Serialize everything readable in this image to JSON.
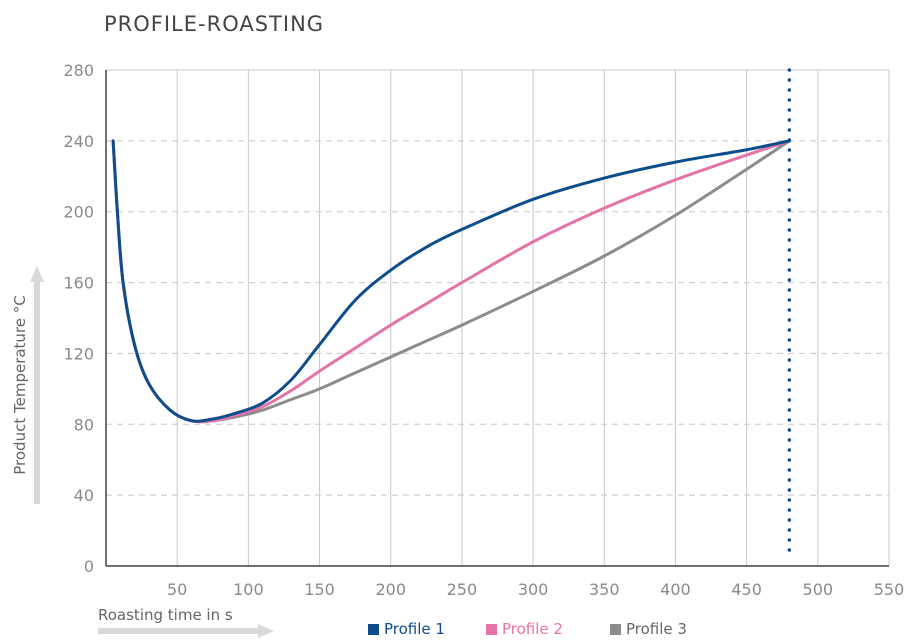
{
  "title": "PROFILE-ROASTING",
  "colors": {
    "profile1": "#0d4d8c",
    "profile2": "#e573a8",
    "profile3": "#8c8c8c",
    "grid": "#c8c8c8",
    "axis": "#444444",
    "marker": "#0d4d8c"
  },
  "chart_data": {
    "type": "line",
    "xlabel": "Roasting time in s",
    "ylabel": "Product Temperature °C",
    "xlim": [
      0,
      550
    ],
    "ylim": [
      0,
      280
    ],
    "xticks": [
      50,
      100,
      150,
      200,
      250,
      300,
      350,
      400,
      450,
      500,
      550
    ],
    "yticks": [
      0,
      40,
      80,
      120,
      160,
      200,
      240,
      280
    ],
    "grid": {
      "vertical": "solid",
      "horizontal": "dashed"
    },
    "vertical_marker": {
      "x": 480,
      "style": "dotted"
    },
    "legend_position": "bottom",
    "series": [
      {
        "name": "Profile 1",
        "color": "#0d4d8c",
        "x": [
          5,
          8,
          12,
          20,
          30,
          45,
          60,
          75,
          90,
          110,
          130,
          150,
          175,
          200,
          225,
          250,
          300,
          350,
          400,
          450,
          480
        ],
        "y": [
          240,
          200,
          160,
          125,
          103,
          88,
          82,
          83,
          86,
          92,
          105,
          125,
          150,
          167,
          180,
          190,
          207,
          219,
          228,
          235,
          240
        ]
      },
      {
        "name": "Profile 2",
        "color": "#e573a8",
        "x": [
          5,
          8,
          12,
          20,
          30,
          45,
          60,
          75,
          90,
          110,
          130,
          150,
          175,
          200,
          225,
          250,
          300,
          350,
          400,
          450,
          480
        ],
        "y": [
          240,
          200,
          160,
          125,
          103,
          88,
          82,
          82,
          85,
          90,
          99,
          110,
          123,
          136,
          148,
          160,
          183,
          202,
          218,
          232,
          240
        ]
      },
      {
        "name": "Profile 3",
        "color": "#8c8c8c",
        "x": [
          5,
          8,
          12,
          20,
          30,
          45,
          60,
          75,
          90,
          110,
          130,
          150,
          175,
          200,
          225,
          250,
          300,
          350,
          400,
          450,
          480
        ],
        "y": [
          240,
          200,
          160,
          125,
          103,
          88,
          82,
          82,
          84,
          88,
          94,
          100,
          109,
          118,
          127,
          136,
          155,
          175,
          198,
          224,
          240
        ]
      }
    ]
  }
}
